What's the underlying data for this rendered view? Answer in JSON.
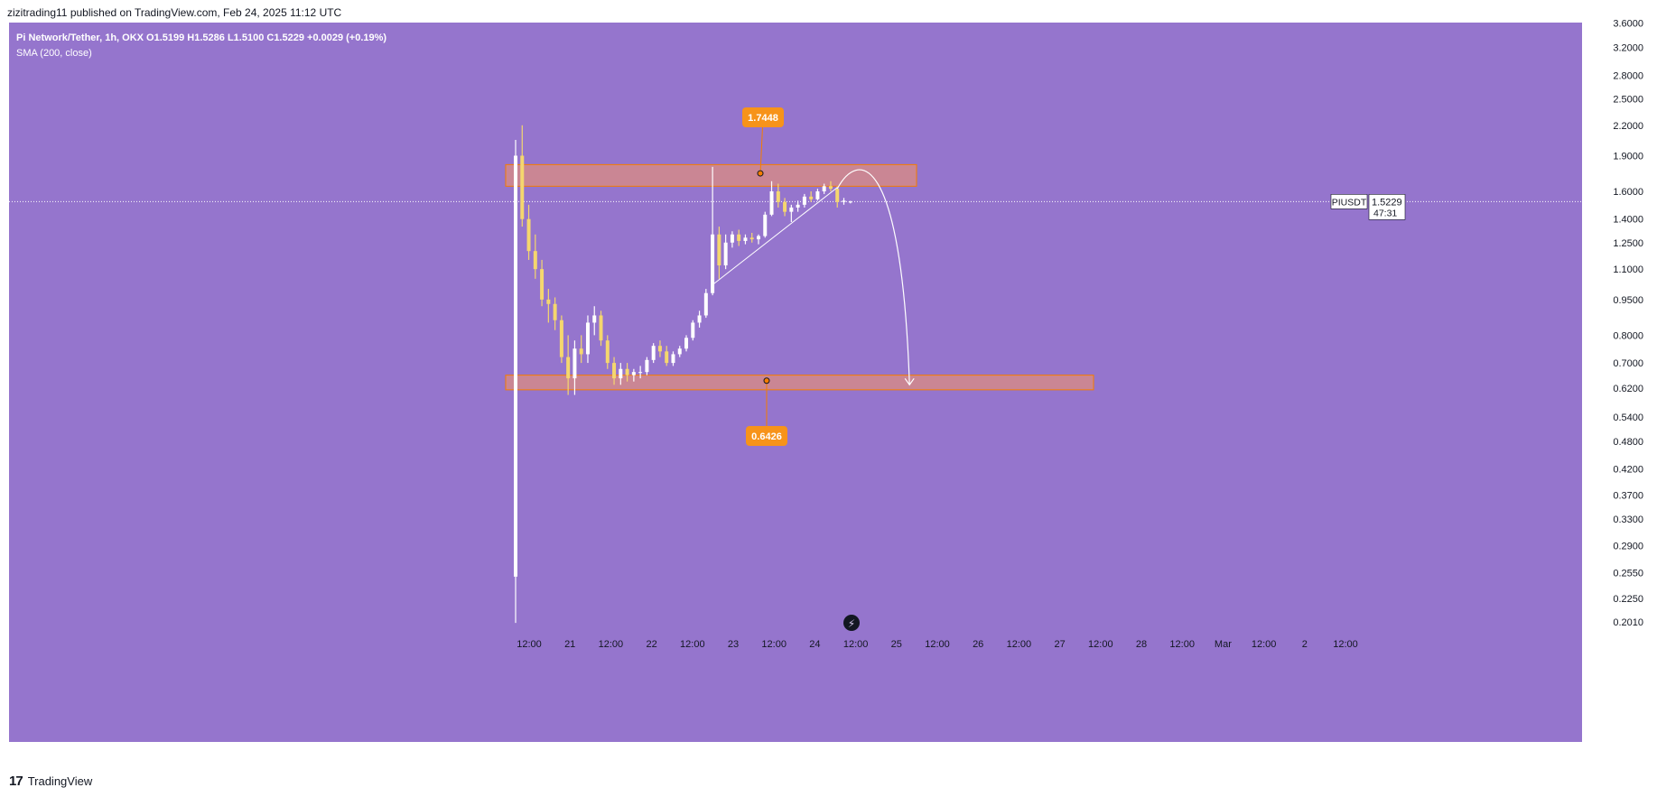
{
  "header": {
    "published_line": "zizitrading11 published on TradingView.com, Feb 24, 2025 11:12 UTC"
  },
  "legend": {
    "symbol_line": "Pi Network/Tether, 1h, OKX  O1.5199  H1.5286  L1.5100  C1.5229  +0.0029 (+0.19%)",
    "indicator_line": "SMA (200, close)"
  },
  "footer": {
    "logo_glyph": "17",
    "brand": "TradingView"
  },
  "colors": {
    "background": "#9575cd",
    "candle_up": "#ffffff",
    "candle_down": "#f5d76e",
    "zone_fill": "#d4898a",
    "zone_border": "#f57c00",
    "label_bg": "#f7931a",
    "drawing": "#ffffff"
  },
  "chart_data": {
    "type": "candlestick",
    "symbol": "PIUSDT",
    "interval": "1h",
    "exchange": "OKX",
    "y_scale": "log",
    "yaxis_ticks": [
      "3.6000",
      "3.2000",
      "2.8000",
      "2.5000",
      "2.2000",
      "1.9000",
      "1.6000",
      "1.4000",
      "1.2500",
      "1.1000",
      "0.9500",
      "0.8000",
      "0.7000",
      "0.6200",
      "0.5400",
      "0.4800",
      "0.4200",
      "0.3700",
      "0.3300",
      "0.2900",
      "0.2550",
      "0.2250",
      "0.2010"
    ],
    "xaxis_ticks": [
      "12:00",
      "21",
      "12:00",
      "22",
      "12:00",
      "23",
      "12:00",
      "24",
      "12:00",
      "25",
      "12:00",
      "26",
      "12:00",
      "27",
      "12:00",
      "28",
      "12:00",
      "Mar",
      "12:00",
      "2",
      "12:00"
    ],
    "last_price": {
      "symbol_label": "PIUSDT",
      "price": "1.5229",
      "countdown": "47:31",
      "value": 1.5229
    },
    "ohlc_last": {
      "open": 1.5199,
      "high": 1.5286,
      "low": 1.51,
      "close": 1.5229,
      "change": 0.0029,
      "change_pct": 0.19
    },
    "zones": [
      {
        "name": "resistance",
        "low": 1.64,
        "high": 1.82,
        "label": "1.7448",
        "value": 1.7448
      },
      {
        "name": "support",
        "low": 0.615,
        "high": 0.66,
        "label": "0.6426",
        "value": 0.6426
      }
    ],
    "candles": [
      {
        "t": 0,
        "o": 0.25,
        "h": 2.05,
        "l": 0.2,
        "c": 1.9
      },
      {
        "t": 1,
        "o": 1.9,
        "h": 2.2,
        "l": 1.35,
        "c": 1.4
      },
      {
        "t": 2,
        "o": 1.4,
        "h": 1.5,
        "l": 1.15,
        "c": 1.2
      },
      {
        "t": 3,
        "o": 1.2,
        "h": 1.3,
        "l": 1.05,
        "c": 1.1
      },
      {
        "t": 4,
        "o": 1.1,
        "h": 1.15,
        "l": 0.92,
        "c": 0.95
      },
      {
        "t": 5,
        "o": 0.95,
        "h": 1.0,
        "l": 0.85,
        "c": 0.93
      },
      {
        "t": 6,
        "o": 0.93,
        "h": 0.96,
        "l": 0.82,
        "c": 0.86
      },
      {
        "t": 7,
        "o": 0.86,
        "h": 0.88,
        "l": 0.7,
        "c": 0.72
      },
      {
        "t": 8,
        "o": 0.72,
        "h": 0.8,
        "l": 0.6,
        "c": 0.65
      },
      {
        "t": 9,
        "o": 0.65,
        "h": 0.78,
        "l": 0.6,
        "c": 0.75
      },
      {
        "t": 10,
        "o": 0.75,
        "h": 0.8,
        "l": 0.7,
        "c": 0.73
      },
      {
        "t": 11,
        "o": 0.73,
        "h": 0.88,
        "l": 0.7,
        "c": 0.85
      },
      {
        "t": 12,
        "o": 0.85,
        "h": 0.92,
        "l": 0.8,
        "c": 0.88
      },
      {
        "t": 13,
        "o": 0.88,
        "h": 0.9,
        "l": 0.76,
        "c": 0.78
      },
      {
        "t": 14,
        "o": 0.78,
        "h": 0.8,
        "l": 0.68,
        "c": 0.7
      },
      {
        "t": 15,
        "o": 0.7,
        "h": 0.72,
        "l": 0.63,
        "c": 0.65
      },
      {
        "t": 16,
        "o": 0.65,
        "h": 0.7,
        "l": 0.63,
        "c": 0.68
      },
      {
        "t": 17,
        "o": 0.68,
        "h": 0.7,
        "l": 0.64,
        "c": 0.66
      },
      {
        "t": 18,
        "o": 0.66,
        "h": 0.68,
        "l": 0.64,
        "c": 0.67
      },
      {
        "t": 19,
        "o": 0.67,
        "h": 0.69,
        "l": 0.65,
        "c": 0.67
      },
      {
        "t": 20,
        "o": 0.67,
        "h": 0.72,
        "l": 0.66,
        "c": 0.71
      },
      {
        "t": 21,
        "o": 0.71,
        "h": 0.77,
        "l": 0.7,
        "c": 0.76
      },
      {
        "t": 22,
        "o": 0.76,
        "h": 0.78,
        "l": 0.72,
        "c": 0.74
      },
      {
        "t": 23,
        "o": 0.74,
        "h": 0.76,
        "l": 0.69,
        "c": 0.7
      },
      {
        "t": 24,
        "o": 0.7,
        "h": 0.74,
        "l": 0.69,
        "c": 0.73
      },
      {
        "t": 25,
        "o": 0.73,
        "h": 0.76,
        "l": 0.72,
        "c": 0.75
      },
      {
        "t": 26,
        "o": 0.75,
        "h": 0.8,
        "l": 0.74,
        "c": 0.79
      },
      {
        "t": 27,
        "o": 0.79,
        "h": 0.86,
        "l": 0.78,
        "c": 0.85
      },
      {
        "t": 28,
        "o": 0.85,
        "h": 0.9,
        "l": 0.83,
        "c": 0.88
      },
      {
        "t": 29,
        "o": 0.88,
        "h": 1.0,
        "l": 0.87,
        "c": 0.98
      },
      {
        "t": 30,
        "o": 0.98,
        "h": 1.8,
        "l": 0.97,
        "c": 1.3
      },
      {
        "t": 31,
        "o": 1.3,
        "h": 1.35,
        "l": 1.05,
        "c": 1.12
      },
      {
        "t": 32,
        "o": 1.12,
        "h": 1.3,
        "l": 1.1,
        "c": 1.25
      },
      {
        "t": 33,
        "o": 1.25,
        "h": 1.32,
        "l": 1.22,
        "c": 1.3
      },
      {
        "t": 34,
        "o": 1.3,
        "h": 1.33,
        "l": 1.23,
        "c": 1.26
      },
      {
        "t": 35,
        "o": 1.26,
        "h": 1.3,
        "l": 1.24,
        "c": 1.28
      },
      {
        "t": 36,
        "o": 1.28,
        "h": 1.31,
        "l": 1.25,
        "c": 1.27
      },
      {
        "t": 37,
        "o": 1.27,
        "h": 1.3,
        "l": 1.24,
        "c": 1.29
      },
      {
        "t": 38,
        "o": 1.29,
        "h": 1.45,
        "l": 1.28,
        "c": 1.43
      },
      {
        "t": 39,
        "o": 1.43,
        "h": 1.68,
        "l": 1.42,
        "c": 1.6
      },
      {
        "t": 40,
        "o": 1.6,
        "h": 1.66,
        "l": 1.48,
        "c": 1.52
      },
      {
        "t": 41,
        "o": 1.52,
        "h": 1.55,
        "l": 1.42,
        "c": 1.45
      },
      {
        "t": 42,
        "o": 1.45,
        "h": 1.5,
        "l": 1.38,
        "c": 1.48
      },
      {
        "t": 43,
        "o": 1.48,
        "h": 1.53,
        "l": 1.45,
        "c": 1.5
      },
      {
        "t": 44,
        "o": 1.5,
        "h": 1.58,
        "l": 1.48,
        "c": 1.56
      },
      {
        "t": 45,
        "o": 1.56,
        "h": 1.6,
        "l": 1.52,
        "c": 1.54
      },
      {
        "t": 46,
        "o": 1.54,
        "h": 1.62,
        "l": 1.53,
        "c": 1.6
      },
      {
        "t": 47,
        "o": 1.6,
        "h": 1.66,
        "l": 1.58,
        "c": 1.64
      },
      {
        "t": 48,
        "o": 1.64,
        "h": 1.68,
        "l": 1.6,
        "c": 1.62
      },
      {
        "t": 49,
        "o": 1.62,
        "h": 1.64,
        "l": 1.48,
        "c": 1.52
      },
      {
        "t": 50,
        "o": 1.52,
        "h": 1.55,
        "l": 1.5,
        "c": 1.53
      },
      {
        "t": 51,
        "o": 1.5199,
        "h": 1.5286,
        "l": 1.51,
        "c": 1.5229
      }
    ],
    "trendline": {
      "from": {
        "t": 30,
        "price": 1.02
      },
      "to": {
        "t": 49,
        "price": 1.63
      }
    },
    "projection": [
      {
        "t": 49,
        "price": 1.62
      },
      {
        "t": 52,
        "price": 1.7
      },
      {
        "t": 56,
        "price": 1.4
      },
      {
        "t": 60,
        "price": 0.63
      }
    ],
    "visible_time_range": {
      "candle_index_of_12h_20": 0,
      "candles_per_12h": 6
    }
  }
}
